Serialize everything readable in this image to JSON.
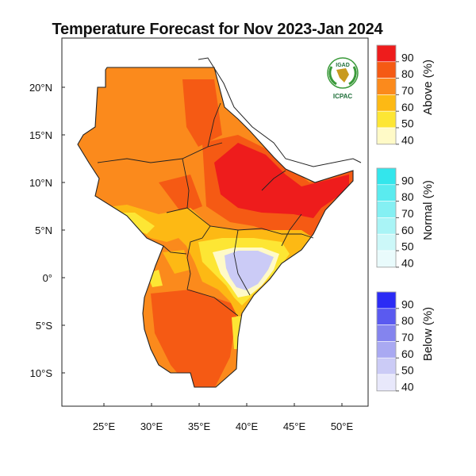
{
  "title": "Temperature Forecast for Nov 2023-Jan 2024",
  "logo": {
    "top_text": "IGAD",
    "bottom_text": "ICPAC"
  },
  "axes": {
    "x_ticks": [
      {
        "value": 25,
        "label": "25°E"
      },
      {
        "value": 30,
        "label": "30°E"
      },
      {
        "value": 35,
        "label": "35°E"
      },
      {
        "value": 40,
        "label": "40°E"
      },
      {
        "value": 45,
        "label": "45°E"
      },
      {
        "value": 50,
        "label": "50°E"
      }
    ],
    "y_ticks": [
      {
        "value": 20,
        "label": "20°N"
      },
      {
        "value": 15,
        "label": "15°N"
      },
      {
        "value": 10,
        "label": "10°N"
      },
      {
        "value": 5,
        "label": "5°N"
      },
      {
        "value": 0,
        "label": "0°"
      },
      {
        "value": -5,
        "label": "5°S"
      },
      {
        "value": -10,
        "label": "10°S"
      }
    ],
    "lon_range": [
      20.3,
      52.3
    ],
    "lat_range": [
      -13.5,
      25.5
    ]
  },
  "legend": {
    "above": {
      "title": "Above (%)",
      "levels": [
        "90",
        "80",
        "70",
        "60",
        "50",
        "40"
      ],
      "colors": [
        "#ee1c1c",
        "#f55a14",
        "#fb8a1c",
        "#fdb914",
        "#fde634",
        "#fffac7"
      ]
    },
    "normal": {
      "title": "Normal (%)",
      "levels": [
        "90",
        "80",
        "70",
        "60",
        "50",
        "40"
      ],
      "colors": [
        "#33e6ec",
        "#5aebef",
        "#84f0f3",
        "#a9f4f6",
        "#ccf8f9",
        "#e9fbfc"
      ]
    },
    "below": {
      "title": "Below (%)",
      "levels": [
        "90",
        "80",
        "70",
        "60",
        "50",
        "40"
      ],
      "colors": [
        "#2b2bf5",
        "#5a5af0",
        "#8484ee",
        "#a9a9f2",
        "#cbcbf6",
        "#e8e8fb"
      ]
    }
  }
}
